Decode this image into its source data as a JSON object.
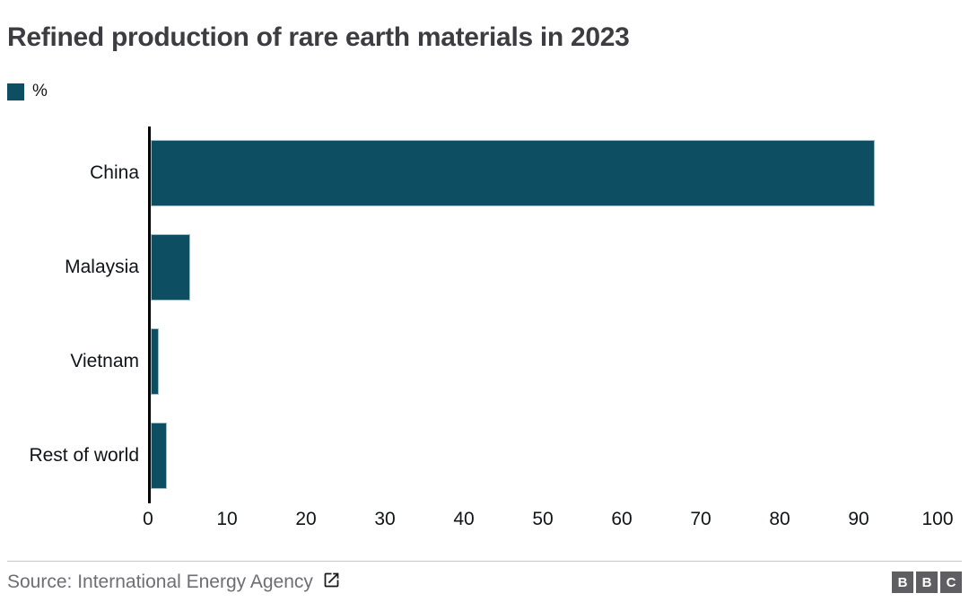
{
  "header": {
    "title": "Refined production of rare earth materials in 2023"
  },
  "legend": {
    "label": "%",
    "swatch_color": "#0d4e63"
  },
  "chart_data": {
    "type": "bar",
    "orientation": "horizontal",
    "title": "Refined production of rare earth materials in 2023",
    "categories": [
      "China",
      "Malaysia",
      "Vietnam",
      "Rest of world"
    ],
    "values": [
      92,
      5,
      1,
      2
    ],
    "unit": "%",
    "xlabel": "",
    "ylabel": "",
    "xlim": [
      0,
      100
    ],
    "x_ticks": [
      0,
      10,
      20,
      30,
      40,
      50,
      60,
      70,
      80,
      90,
      100
    ],
    "grid": false,
    "bar_color": "#0d4e63",
    "axis_color": "#000000",
    "legend_entries": [
      "%"
    ],
    "legend_position": "top-left"
  },
  "footer": {
    "source": "Source: International Energy Agency",
    "external_link_icon": "external-link",
    "logo_letters": [
      "B",
      "B",
      "C"
    ],
    "logo_color": "#5e5e63"
  }
}
